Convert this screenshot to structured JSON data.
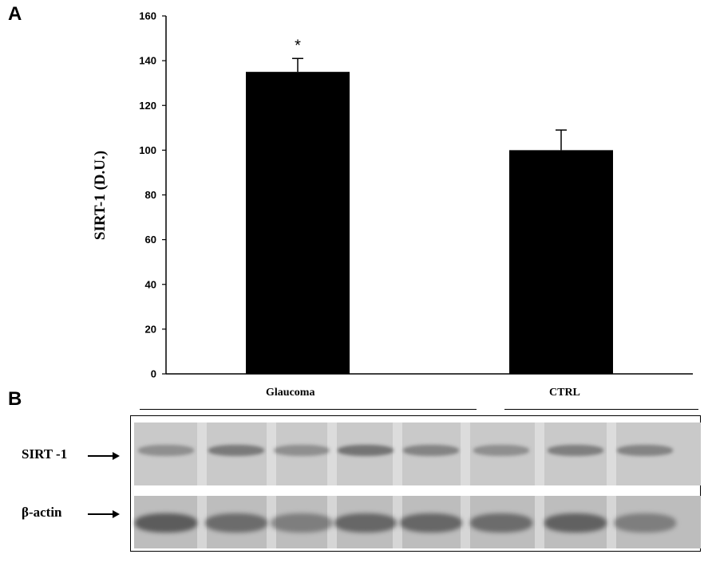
{
  "panels": {
    "a": "A",
    "b": "B"
  },
  "chart_data": {
    "type": "bar",
    "categories": [
      "Glaucoma",
      "CTRL"
    ],
    "values": [
      135,
      100
    ],
    "errors": [
      6,
      9
    ],
    "significance": [
      "*",
      ""
    ],
    "ylabel": "SIRT-1 (D.U.)",
    "xlabel": "",
    "title": "",
    "ylim": [
      0,
      160
    ],
    "yticks": [
      0,
      20,
      40,
      60,
      80,
      100,
      120,
      140,
      160
    ],
    "bar_color": "#000000",
    "grid": false
  },
  "blot": {
    "group_labels": [
      "Glaucoma",
      "CTRL"
    ],
    "rows": [
      {
        "label": "SIRT -1"
      },
      {
        "label": "β-actin"
      }
    ],
    "lane_intensity_top": [
      0.55,
      0.75,
      0.55,
      0.8,
      0.65,
      0.55,
      0.7,
      0.65
    ],
    "lane_intensity_bottom": [
      0.85,
      0.7,
      0.55,
      0.75,
      0.75,
      0.7,
      0.8,
      0.55
    ]
  }
}
